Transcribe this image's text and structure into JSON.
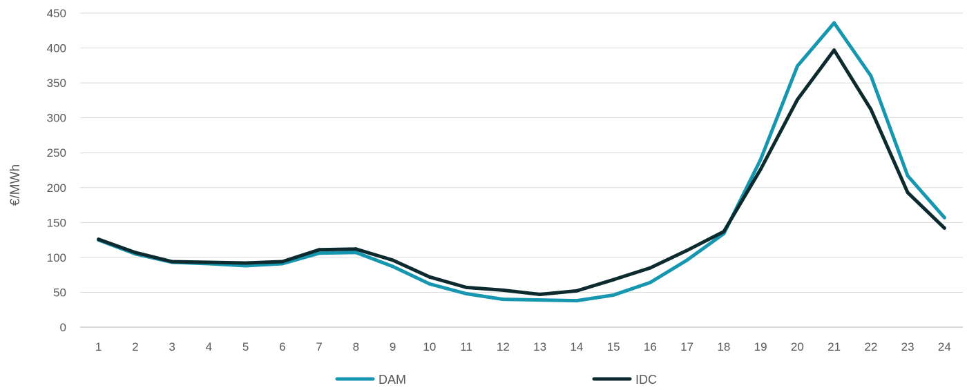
{
  "chart_data": {
    "type": "line",
    "xlabel": "",
    "ylabel": "€/MWh",
    "categories": [
      "1",
      "2",
      "3",
      "4",
      "5",
      "6",
      "7",
      "8",
      "9",
      "10",
      "11",
      "12",
      "13",
      "14",
      "15",
      "16",
      "17",
      "18",
      "19",
      "20",
      "21",
      "22",
      "23",
      "24"
    ],
    "ylim": [
      0,
      450
    ],
    "yticks": [
      0,
      50,
      100,
      150,
      200,
      250,
      300,
      350,
      400,
      450
    ],
    "grid": "horizontal",
    "legend_position": "bottom",
    "series": [
      {
        "name": "DAM",
        "color": "#1796b0",
        "values": [
          125,
          105,
          93,
          91,
          88,
          91,
          106,
          107,
          87,
          62,
          48,
          40,
          39,
          38,
          46,
          64,
          96,
          134,
          240,
          374,
          436,
          360,
          217,
          157
        ]
      },
      {
        "name": "IDC",
        "color": "#0d2b2f",
        "values": [
          126,
          107,
          94,
          93,
          92,
          94,
          111,
          112,
          96,
          72,
          57,
          53,
          47,
          52,
          68,
          85,
          110,
          137,
          226,
          326,
          397,
          312,
          193,
          142
        ]
      }
    ]
  }
}
